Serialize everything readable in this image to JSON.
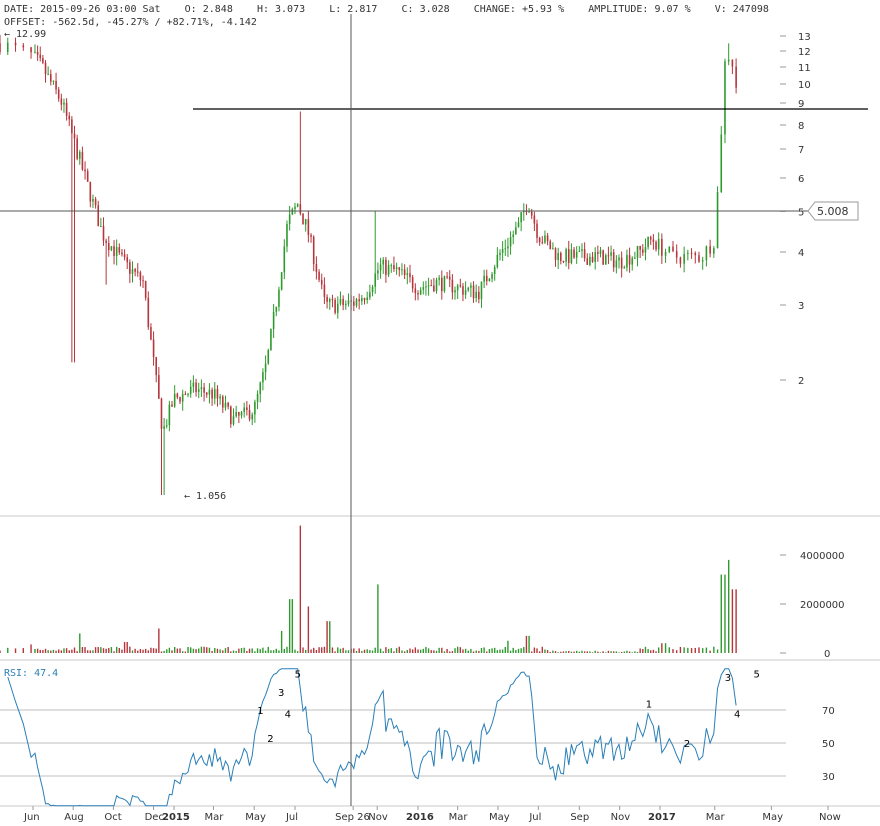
{
  "header": {
    "line1": {
      "date_label": "DATE:",
      "date": "2015-09-26 03:00 Sat",
      "open_label": "O:",
      "open": "2.848",
      "high_label": "H:",
      "high": "3.073",
      "low_label": "L:",
      "low": "2.817",
      "close_label": "C:",
      "close": "3.028",
      "change_label": "CHANGE:",
      "change": "+5.93 %",
      "amplitude_label": "AMPLITUDE:",
      "amplitude": "9.07 %",
      "volume_label": "V:",
      "volume": "247098"
    },
    "line2": {
      "offset_label": "OFFSET:",
      "offset": "-562.5d, -45.27% / +82.71%, -4.142"
    },
    "high_marker": "← 12.99",
    "low_marker": "← 1.056"
  },
  "crosshair_price": "5.008",
  "rsi_label": "RSI: 47.4",
  "colors": {
    "up": "#2e9a2e",
    "down": "#b5353b",
    "rsi": "#2a7fb8",
    "grid": "#999999"
  },
  "chart_data": [
    {
      "type": "candlestick",
      "y_scale": "log",
      "y_ticks": [
        2,
        3,
        4,
        5,
        6,
        7,
        8,
        9,
        10,
        11,
        12,
        13
      ],
      "x_ticks": [
        {
          "date": "2014-06",
          "label": "Jun",
          "bold": false
        },
        {
          "date": "2014-08",
          "label": "Aug",
          "bold": false
        },
        {
          "date": "2014-10",
          "label": "Oct",
          "bold": false
        },
        {
          "date": "2014-12",
          "label": "Dec",
          "bold": false
        },
        {
          "date": "2015-01",
          "label": "2015",
          "bold": true
        },
        {
          "date": "2015-03",
          "label": "Mar",
          "bold": false
        },
        {
          "date": "2015-05",
          "label": "May",
          "bold": false
        },
        {
          "date": "2015-07",
          "label": "Jul",
          "bold": false
        },
        {
          "date": "2015-09-26",
          "label": "Sep 26",
          "bold": false
        },
        {
          "date": "2015-11",
          "label": "Nov",
          "bold": false
        },
        {
          "date": "2016-01",
          "label": "2016",
          "bold": true
        },
        {
          "date": "2016-03",
          "label": "Mar",
          "bold": false
        },
        {
          "date": "2016-05",
          "label": "May",
          "bold": false
        },
        {
          "date": "2016-07",
          "label": "Jul",
          "bold": false
        },
        {
          "date": "2016-09",
          "label": "Sep",
          "bold": false
        },
        {
          "date": "2016-11",
          "label": "Nov",
          "bold": false
        },
        {
          "date": "2017-01",
          "label": "2017",
          "bold": true
        },
        {
          "date": "2017-03",
          "label": "Mar",
          "bold": false
        },
        {
          "date": "2017-05",
          "label": "May",
          "bold": false
        },
        {
          "date": "2017-07",
          "label": "Now",
          "bold": false
        }
      ],
      "time_range": [
        "2014-05",
        "2017-08"
      ],
      "key_prices": [
        {
          "date": "2014-05",
          "price": 12.99,
          "note": "high"
        },
        {
          "date": "2014-12-15",
          "price": 1.056,
          "note": "low"
        },
        {
          "date": "2015-07-10",
          "price": 8.6
        },
        {
          "date": "2015-09-26",
          "price": 3.028
        },
        {
          "date": "2016-06-15",
          "price": 5.6
        },
        {
          "date": "2017-03-15",
          "price": 12.5
        }
      ],
      "horizontal_line": 8.6,
      "crosshair": {
        "date": "2015-09-26",
        "price": 5.008
      }
    },
    {
      "type": "bar",
      "name": "volume",
      "y_ticks": [
        0,
        2000000,
        4000000
      ],
      "peaks": [
        {
          "date": "2015-07-10",
          "value": 5200000
        },
        {
          "date": "2017-03-15",
          "value": 3800000
        }
      ]
    },
    {
      "type": "line",
      "name": "RSI",
      "y_ticks": [
        30,
        50,
        70
      ],
      "value": 47.4,
      "wave_labels": [
        {
          "label": "1",
          "date": "2015-05-10",
          "value": 70
        },
        {
          "label": "2",
          "date": "2015-05-25",
          "value": 53
        },
        {
          "label": "3",
          "date": "2015-06-10",
          "value": 81
        },
        {
          "label": "4",
          "date": "2015-06-20",
          "value": 68
        },
        {
          "label": "5",
          "date": "2015-07-05",
          "value": 92
        },
        {
          "label": "1",
          "date": "2016-12-15",
          "value": 74
        },
        {
          "label": "2",
          "date": "2017-01-30",
          "value": 50
        },
        {
          "label": "3",
          "date": "2017-03-15",
          "value": 90
        },
        {
          "label": "4",
          "date": "2017-03-25",
          "value": 68
        },
        {
          "label": "5",
          "date": "2017-04-15",
          "value": 92
        }
      ]
    }
  ]
}
